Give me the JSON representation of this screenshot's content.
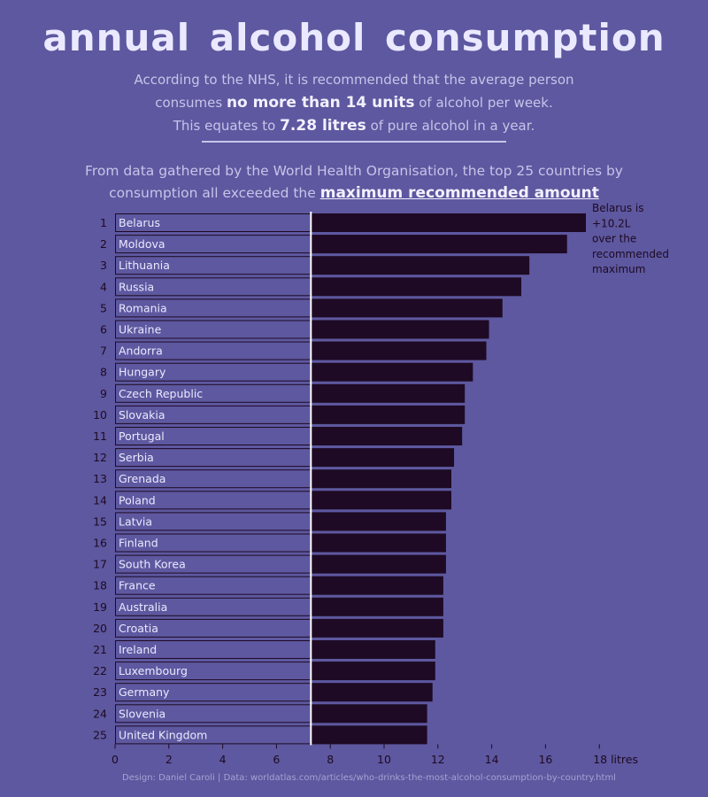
{
  "header": {
    "title": "annual alcohol consumption",
    "intro_line1": "According to the NHS, it is recommended that the average person",
    "intro_line2_pre": "consumes",
    "intro_line2_bold": "no more than 14 units",
    "intro_line2_post": "of alcohol per week.",
    "intro_line3_pre": "This equates to",
    "intro_line3_bold": "7.28 litres",
    "intro_line3_post": "of pure alcohol in a year.",
    "subtitle_line1": "From data gathered by the World Health Organisation, the top 25 countries by",
    "subtitle_line2_pre": "consumption all exceeded the",
    "subtitle_line2_bold": "maximum recommended amount"
  },
  "chart_data": {
    "type": "bar",
    "orientation": "horizontal",
    "title": "annual alcohol consumption",
    "xlabel": "litres",
    "xlim": [
      0,
      18
    ],
    "xticks": [
      0,
      2,
      4,
      6,
      8,
      10,
      12,
      14,
      16,
      18
    ],
    "xtick_labels": [
      "0",
      "2",
      "4",
      "6",
      "8",
      "10",
      "12",
      "14",
      "16",
      "18 litres"
    ],
    "reference_line": 7.28,
    "ranks": [
      "1",
      "2",
      "3",
      "4",
      "5",
      "6",
      "7",
      "8",
      "9",
      "10",
      "11",
      "12",
      "13",
      "14",
      "15",
      "16",
      "17",
      "18",
      "19",
      "20",
      "21",
      "22",
      "23",
      "24",
      "25"
    ],
    "categories": [
      "Belarus",
      "Moldova",
      "Lithuania",
      "Russia",
      "Romania",
      "Ukraine",
      "Andorra",
      "Hungary",
      "Czech Republic",
      "Slovakia",
      "Portugal",
      "Serbia",
      "Grenada",
      "Poland",
      "Latvia",
      "Finland",
      "South Korea",
      "France",
      "Australia",
      "Croatia",
      "Ireland",
      "Luxembourg",
      "Germany",
      "Slovenia",
      "United Kingdom"
    ],
    "values": [
      17.5,
      16.8,
      15.4,
      15.1,
      14.4,
      13.9,
      13.8,
      13.3,
      13.0,
      13.0,
      12.9,
      12.6,
      12.5,
      12.5,
      12.3,
      12.3,
      12.3,
      12.2,
      12.2,
      12.2,
      11.9,
      11.9,
      11.8,
      11.6,
      11.6
    ],
    "annotation": [
      "Belarus is",
      "+10.2L",
      "over the",
      "recommended",
      "maximum"
    ]
  },
  "footer": {
    "credit": "Design: Daniel Caroli  |  Data: worldatlas.com/articles/who-drinks-the-most-alcohol-consumption-by-country.html"
  },
  "colors": {
    "background": "#5d589f",
    "bar": "#1e0a24",
    "reference_line": "#ffffff",
    "text_light": "#ebe9ff",
    "text_dark": "#1e0a24"
  }
}
